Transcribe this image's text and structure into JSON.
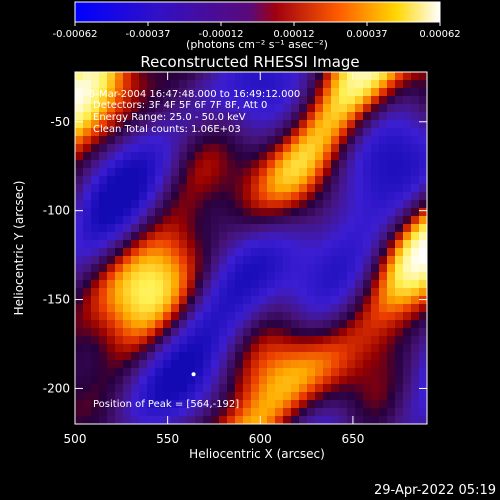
{
  "colorbar": {
    "ticks": [
      "-0.00062",
      "-0.00037",
      "-0.00012",
      "0.00012",
      "0.00037",
      "0.00062"
    ],
    "units": "(photons cm⁻² s⁻¹ asec⁻²)"
  },
  "chart_data": {
    "type": "heatmap",
    "title": "Reconstructed RHESSI Image",
    "xlabel": "Heliocentric X (arcsec)",
    "ylabel": "Heliocentric Y (arcsec)",
    "xlim": [
      500,
      690
    ],
    "ylim": [
      -220,
      -22
    ],
    "x_ticks": [
      500,
      550,
      600,
      650
    ],
    "y_ticks": [
      -50,
      -100,
      -150,
      -200
    ],
    "color_range": [
      -0.00062,
      0.00062
    ],
    "colormap": "blue-violet-red-yellow-white",
    "annotations": [
      "5-Mar-2004 16:47:48.000 to 16:49:12.000",
      "Detectors: 3F 4F 5F 6F 7F 8F, Att 0",
      "Energy Range: 25.0 - 50.0 keV",
      "Clean     Total counts: 1.06E+03",
      "Position of Peak = [564,-192]"
    ],
    "peak": [
      564,
      -192
    ]
  },
  "footer": {
    "timestamp": "29-Apr-2022 05:19"
  }
}
